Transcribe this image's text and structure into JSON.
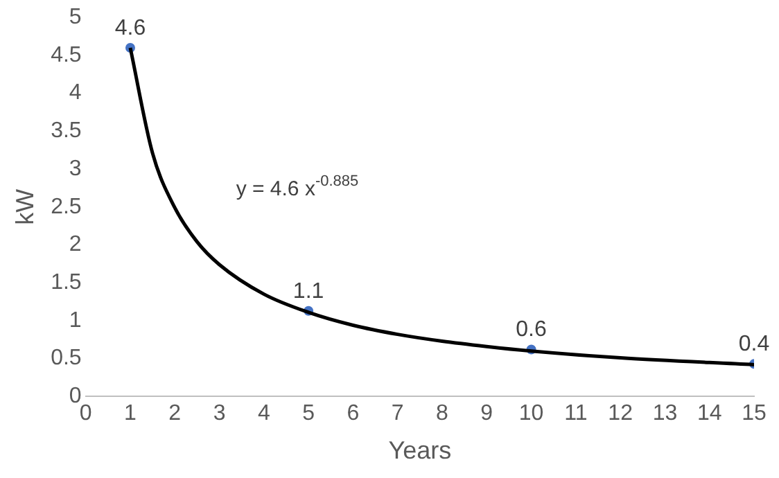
{
  "chart_data": {
    "type": "scatter",
    "xlabel": "Years",
    "ylabel": "kW",
    "xlim": [
      0,
      15
    ],
    "xticks": [
      0,
      1,
      2,
      3,
      4,
      5,
      6,
      7,
      8,
      9,
      10,
      11,
      12,
      13,
      14,
      15
    ],
    "ylim": [
      0,
      5
    ],
    "yticks": [
      0,
      0.5,
      1,
      1.5,
      2,
      2.5,
      3,
      3.5,
      4,
      4.5,
      5
    ],
    "grid": false,
    "legend": false,
    "annotations": [
      "y = 4.6 x$^{-0.885}$"
    ],
    "series": [
      {
        "type": "line",
        "marker": "none",
        "color": "#000000",
        "x": [
          1,
          1.5,
          2,
          2.5,
          3,
          4,
          5,
          6,
          7,
          8,
          9,
          10,
          12,
          15
        ],
        "values": [
          4.6,
          3.21,
          2.49,
          2.04,
          1.74,
          1.35,
          1.11,
          0.94,
          0.82,
          0.73,
          0.66,
          0.6,
          0.51,
          0.42
        ]
      },
      {
        "marker": "circle",
        "color": "#4472c4",
        "x": [
          1,
          5,
          10,
          15
        ],
        "values": [
          4.6,
          1.13,
          0.62,
          0.43
        ],
        "value_labels": [
          "4.6",
          "1.1",
          "0.6",
          "0.4"
        ]
      }
    ]
  }
}
